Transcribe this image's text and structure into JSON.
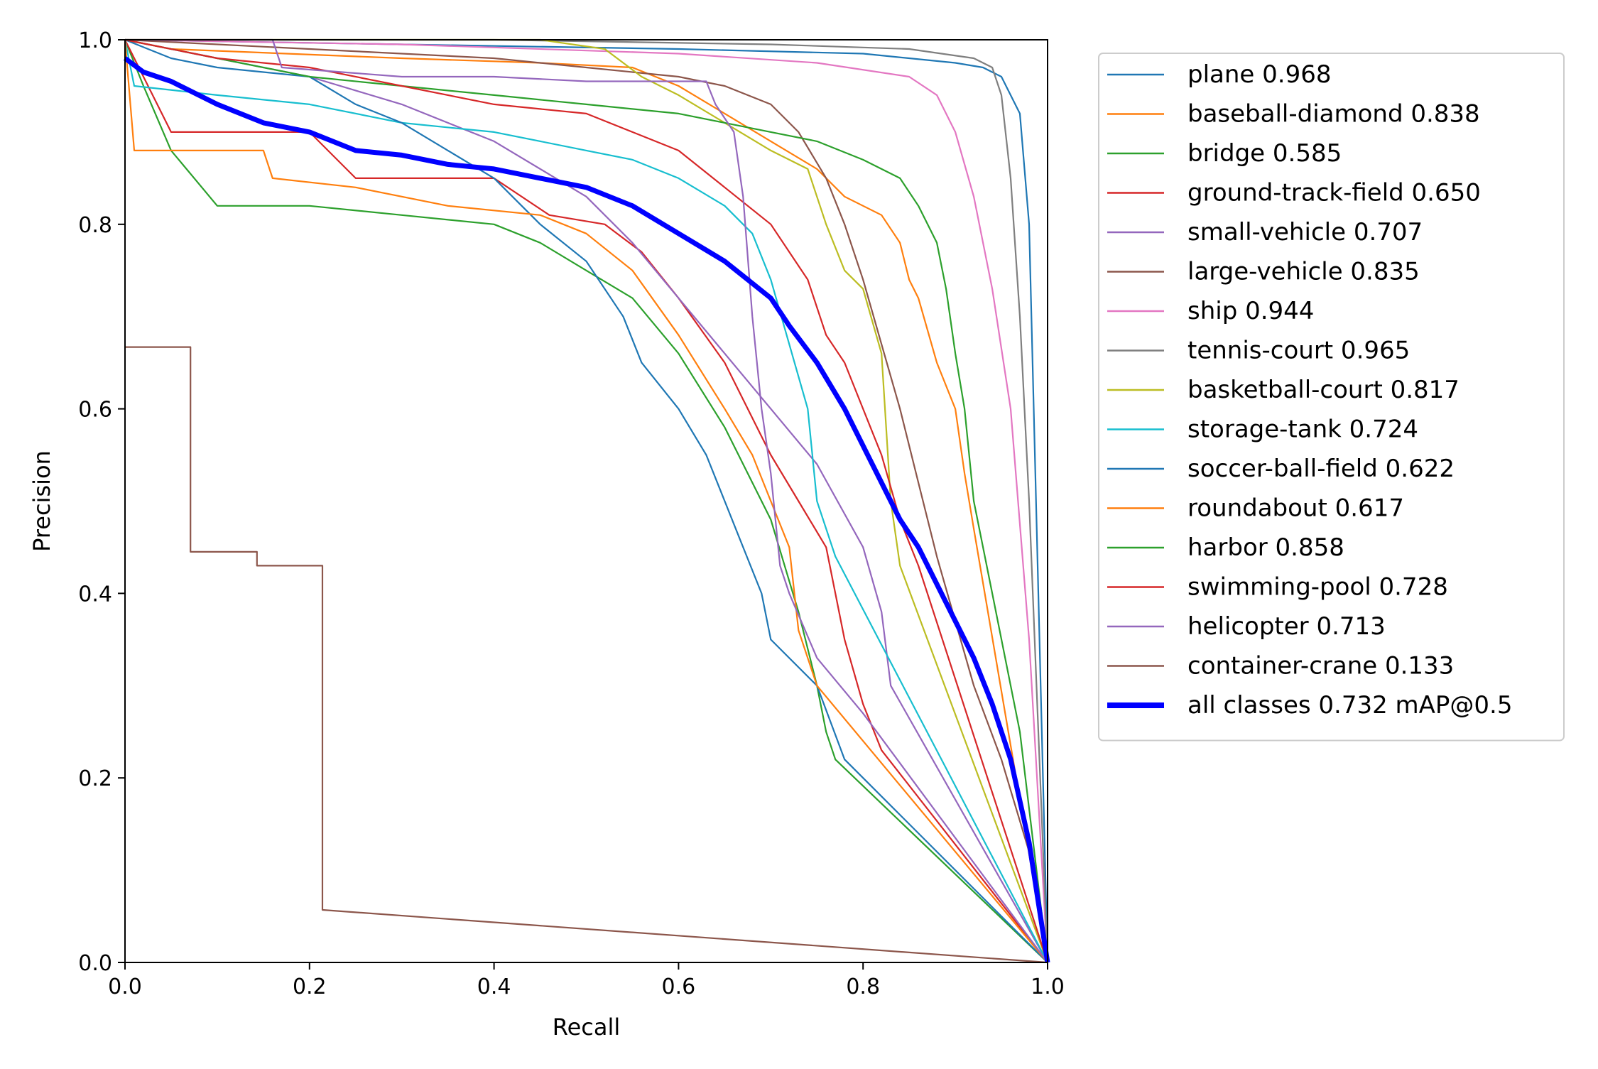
{
  "chart_data": {
    "type": "line",
    "title": "",
    "xlabel": "Recall",
    "ylabel": "Precision",
    "xlim": [
      0,
      1
    ],
    "ylim": [
      0,
      1
    ],
    "xticks": [
      "0.0",
      "0.2",
      "0.4",
      "0.6",
      "0.8",
      "1.0"
    ],
    "yticks": [
      "0.0",
      "0.2",
      "0.4",
      "0.6",
      "0.8",
      "1.0"
    ],
    "grid": false,
    "legend_position": "outside-right",
    "series": [
      {
        "name": "plane 0.968",
        "color": "#1f77b4",
        "points": [
          [
            0,
            1
          ],
          [
            0.3,
            0.995
          ],
          [
            0.6,
            0.99
          ],
          [
            0.8,
            0.985
          ],
          [
            0.9,
            0.975
          ],
          [
            0.93,
            0.97
          ],
          [
            0.95,
            0.96
          ],
          [
            0.97,
            0.92
          ],
          [
            0.98,
            0.8
          ],
          [
            0.99,
            0.4
          ],
          [
            1,
            0
          ]
        ]
      },
      {
        "name": "baseball-diamond 0.838",
        "color": "#ff7f0e",
        "points": [
          [
            0,
            1
          ],
          [
            0.05,
            0.99
          ],
          [
            0.3,
            0.98
          ],
          [
            0.45,
            0.975
          ],
          [
            0.55,
            0.97
          ],
          [
            0.6,
            0.95
          ],
          [
            0.65,
            0.92
          ],
          [
            0.7,
            0.89
          ],
          [
            0.75,
            0.86
          ],
          [
            0.78,
            0.83
          ],
          [
            0.8,
            0.82
          ],
          [
            0.82,
            0.81
          ],
          [
            0.84,
            0.78
          ],
          [
            0.85,
            0.74
          ],
          [
            0.86,
            0.72
          ],
          [
            0.88,
            0.65
          ],
          [
            0.9,
            0.6
          ],
          [
            0.91,
            0.53
          ],
          [
            0.92,
            0.47
          ],
          [
            1,
            0
          ]
        ]
      },
      {
        "name": "bridge 0.585",
        "color": "#2ca02c",
        "points": [
          [
            0,
            1
          ],
          [
            0.02,
            0.95
          ],
          [
            0.05,
            0.88
          ],
          [
            0.1,
            0.82
          ],
          [
            0.2,
            0.82
          ],
          [
            0.3,
            0.81
          ],
          [
            0.4,
            0.8
          ],
          [
            0.45,
            0.78
          ],
          [
            0.5,
            0.75
          ],
          [
            0.55,
            0.72
          ],
          [
            0.6,
            0.66
          ],
          [
            0.65,
            0.58
          ],
          [
            0.7,
            0.48
          ],
          [
            0.73,
            0.38
          ],
          [
            0.75,
            0.3
          ],
          [
            0.76,
            0.25
          ],
          [
            0.77,
            0.22
          ],
          [
            1,
            0
          ]
        ]
      },
      {
        "name": "ground-track-field 0.650",
        "color": "#d62728",
        "points": [
          [
            0,
            1
          ],
          [
            0.05,
            0.9
          ],
          [
            0.2,
            0.9
          ],
          [
            0.25,
            0.85
          ],
          [
            0.4,
            0.85
          ],
          [
            0.46,
            0.81
          ],
          [
            0.52,
            0.8
          ],
          [
            0.56,
            0.77
          ],
          [
            0.6,
            0.72
          ],
          [
            0.65,
            0.65
          ],
          [
            0.7,
            0.55
          ],
          [
            0.73,
            0.5
          ],
          [
            0.76,
            0.45
          ],
          [
            0.78,
            0.35
          ],
          [
            0.8,
            0.28
          ],
          [
            0.82,
            0.23
          ],
          [
            1,
            0
          ]
        ]
      },
      {
        "name": "small-vehicle 0.707",
        "color": "#9467bd",
        "points": [
          [
            0,
            1
          ],
          [
            0.1,
            0.98
          ],
          [
            0.2,
            0.96
          ],
          [
            0.3,
            0.93
          ],
          [
            0.4,
            0.89
          ],
          [
            0.5,
            0.83
          ],
          [
            0.55,
            0.78
          ],
          [
            0.6,
            0.72
          ],
          [
            0.65,
            0.66
          ],
          [
            0.7,
            0.6
          ],
          [
            0.75,
            0.54
          ],
          [
            0.8,
            0.45
          ],
          [
            0.82,
            0.38
          ],
          [
            0.83,
            0.3
          ],
          [
            1,
            0
          ]
        ]
      },
      {
        "name": "large-vehicle 0.835",
        "color": "#8c564b",
        "points": [
          [
            0,
            1
          ],
          [
            0.2,
            0.99
          ],
          [
            0.4,
            0.98
          ],
          [
            0.5,
            0.97
          ],
          [
            0.6,
            0.96
          ],
          [
            0.65,
            0.95
          ],
          [
            0.7,
            0.93
          ],
          [
            0.73,
            0.9
          ],
          [
            0.76,
            0.85
          ],
          [
            0.78,
            0.8
          ],
          [
            0.8,
            0.74
          ],
          [
            0.82,
            0.67
          ],
          [
            0.84,
            0.6
          ],
          [
            0.86,
            0.52
          ],
          [
            0.88,
            0.44
          ],
          [
            0.9,
            0.37
          ],
          [
            0.92,
            0.3
          ],
          [
            0.95,
            0.22
          ],
          [
            0.98,
            0.12
          ],
          [
            1,
            0
          ]
        ]
      },
      {
        "name": "ship 0.944",
        "color": "#e377c2",
        "points": [
          [
            0,
            1
          ],
          [
            0.3,
            0.995
          ],
          [
            0.6,
            0.985
          ],
          [
            0.75,
            0.975
          ],
          [
            0.85,
            0.96
          ],
          [
            0.88,
            0.94
          ],
          [
            0.9,
            0.9
          ],
          [
            0.92,
            0.83
          ],
          [
            0.94,
            0.73
          ],
          [
            0.96,
            0.6
          ],
          [
            0.98,
            0.35
          ],
          [
            1,
            0
          ]
        ]
      },
      {
        "name": "tennis-court 0.965",
        "color": "#7f7f7f",
        "points": [
          [
            0,
            1
          ],
          [
            0.4,
            1
          ],
          [
            0.7,
            0.995
          ],
          [
            0.85,
            0.99
          ],
          [
            0.92,
            0.98
          ],
          [
            0.94,
            0.97
          ],
          [
            0.95,
            0.94
          ],
          [
            0.96,
            0.85
          ],
          [
            0.97,
            0.7
          ],
          [
            0.98,
            0.5
          ],
          [
            0.99,
            0.25
          ],
          [
            1,
            0
          ]
        ]
      },
      {
        "name": "basketball-court 0.817",
        "color": "#bcbd22",
        "points": [
          [
            0,
            1
          ],
          [
            0.45,
            1
          ],
          [
            0.52,
            0.99
          ],
          [
            0.56,
            0.96
          ],
          [
            0.6,
            0.94
          ],
          [
            0.65,
            0.91
          ],
          [
            0.7,
            0.88
          ],
          [
            0.74,
            0.86
          ],
          [
            0.76,
            0.8
          ],
          [
            0.78,
            0.75
          ],
          [
            0.8,
            0.73
          ],
          [
            0.82,
            0.66
          ],
          [
            0.83,
            0.5
          ],
          [
            0.84,
            0.43
          ],
          [
            1,
            0
          ]
        ]
      },
      {
        "name": "storage-tank 0.724",
        "color": "#17becf",
        "points": [
          [
            0,
            1
          ],
          [
            0.01,
            0.95
          ],
          [
            0.1,
            0.94
          ],
          [
            0.2,
            0.93
          ],
          [
            0.3,
            0.91
          ],
          [
            0.4,
            0.9
          ],
          [
            0.5,
            0.88
          ],
          [
            0.55,
            0.87
          ],
          [
            0.6,
            0.85
          ],
          [
            0.65,
            0.82
          ],
          [
            0.68,
            0.79
          ],
          [
            0.7,
            0.74
          ],
          [
            0.72,
            0.67
          ],
          [
            0.74,
            0.6
          ],
          [
            0.75,
            0.5
          ],
          [
            0.77,
            0.44
          ],
          [
            1,
            0
          ]
        ]
      },
      {
        "name": "soccer-ball-field 0.622",
        "color": "#1f77b4",
        "points": [
          [
            0,
            1
          ],
          [
            0.05,
            0.98
          ],
          [
            0.1,
            0.97
          ],
          [
            0.2,
            0.96
          ],
          [
            0.25,
            0.93
          ],
          [
            0.3,
            0.91
          ],
          [
            0.35,
            0.88
          ],
          [
            0.4,
            0.85
          ],
          [
            0.45,
            0.8
          ],
          [
            0.5,
            0.76
          ],
          [
            0.54,
            0.7
          ],
          [
            0.56,
            0.65
          ],
          [
            0.6,
            0.6
          ],
          [
            0.63,
            0.55
          ],
          [
            0.65,
            0.5
          ],
          [
            0.67,
            0.45
          ],
          [
            0.69,
            0.4
          ],
          [
            0.7,
            0.35
          ],
          [
            0.75,
            0.3
          ],
          [
            0.78,
            0.22
          ],
          [
            1,
            0
          ]
        ]
      },
      {
        "name": "roundabout 0.617",
        "color": "#ff7f0e",
        "points": [
          [
            0,
            1
          ],
          [
            0.01,
            0.88
          ],
          [
            0.15,
            0.88
          ],
          [
            0.16,
            0.85
          ],
          [
            0.25,
            0.84
          ],
          [
            0.35,
            0.82
          ],
          [
            0.45,
            0.81
          ],
          [
            0.5,
            0.79
          ],
          [
            0.55,
            0.75
          ],
          [
            0.6,
            0.68
          ],
          [
            0.65,
            0.6
          ],
          [
            0.68,
            0.55
          ],
          [
            0.7,
            0.5
          ],
          [
            0.72,
            0.45
          ],
          [
            0.73,
            0.36
          ],
          [
            0.75,
            0.3
          ],
          [
            0.8,
            0.24
          ],
          [
            1,
            0
          ]
        ]
      },
      {
        "name": "harbor 0.858",
        "color": "#2ca02c",
        "points": [
          [
            0,
            1
          ],
          [
            0.1,
            0.98
          ],
          [
            0.2,
            0.96
          ],
          [
            0.3,
            0.95
          ],
          [
            0.4,
            0.94
          ],
          [
            0.5,
            0.93
          ],
          [
            0.6,
            0.92
          ],
          [
            0.65,
            0.91
          ],
          [
            0.7,
            0.9
          ],
          [
            0.75,
            0.89
          ],
          [
            0.8,
            0.87
          ],
          [
            0.84,
            0.85
          ],
          [
            0.86,
            0.82
          ],
          [
            0.88,
            0.78
          ],
          [
            0.89,
            0.73
          ],
          [
            0.9,
            0.66
          ],
          [
            0.91,
            0.6
          ],
          [
            0.92,
            0.5
          ],
          [
            0.94,
            0.4
          ],
          [
            0.97,
            0.25
          ],
          [
            1,
            0
          ]
        ]
      },
      {
        "name": "swimming-pool 0.728",
        "color": "#d62728",
        "points": [
          [
            0,
            1
          ],
          [
            0.1,
            0.98
          ],
          [
            0.2,
            0.97
          ],
          [
            0.3,
            0.95
          ],
          [
            0.4,
            0.93
          ],
          [
            0.5,
            0.92
          ],
          [
            0.55,
            0.9
          ],
          [
            0.6,
            0.88
          ],
          [
            0.65,
            0.84
          ],
          [
            0.7,
            0.8
          ],
          [
            0.74,
            0.74
          ],
          [
            0.76,
            0.68
          ],
          [
            0.78,
            0.65
          ],
          [
            0.8,
            0.6
          ],
          [
            0.82,
            0.55
          ],
          [
            0.84,
            0.48
          ],
          [
            0.86,
            0.43
          ],
          [
            1,
            0
          ]
        ]
      },
      {
        "name": "helicopter 0.713",
        "color": "#9467bd",
        "points": [
          [
            0,
            1
          ],
          [
            0.16,
            1
          ],
          [
            0.17,
            0.97
          ],
          [
            0.3,
            0.96
          ],
          [
            0.4,
            0.96
          ],
          [
            0.5,
            0.955
          ],
          [
            0.63,
            0.955
          ],
          [
            0.64,
            0.93
          ],
          [
            0.66,
            0.9
          ],
          [
            0.67,
            0.83
          ],
          [
            0.68,
            0.7
          ],
          [
            0.69,
            0.6
          ],
          [
            0.7,
            0.53
          ],
          [
            0.71,
            0.43
          ],
          [
            0.72,
            0.4
          ],
          [
            0.75,
            0.33
          ],
          [
            0.8,
            0.27
          ],
          [
            1,
            0
          ]
        ]
      },
      {
        "name": "container-crane 0.133",
        "color": "#8c564b",
        "points": [
          [
            0,
            0.667
          ],
          [
            0.071,
            0.667
          ],
          [
            0.071,
            0.445
          ],
          [
            0.143,
            0.445
          ],
          [
            0.143,
            0.43
          ],
          [
            0.214,
            0.43
          ],
          [
            0.214,
            0.057
          ],
          [
            1,
            0
          ]
        ]
      },
      {
        "name": "all classes 0.732 mAP@0.5",
        "color": "#0000ff",
        "points": [
          [
            0,
            0.98
          ],
          [
            0.02,
            0.965
          ],
          [
            0.05,
            0.955
          ],
          [
            0.1,
            0.93
          ],
          [
            0.15,
            0.91
          ],
          [
            0.2,
            0.9
          ],
          [
            0.25,
            0.88
          ],
          [
            0.3,
            0.875
          ],
          [
            0.35,
            0.865
          ],
          [
            0.4,
            0.86
          ],
          [
            0.45,
            0.85
          ],
          [
            0.5,
            0.84
          ],
          [
            0.55,
            0.82
          ],
          [
            0.6,
            0.79
          ],
          [
            0.65,
            0.76
          ],
          [
            0.7,
            0.72
          ],
          [
            0.72,
            0.69
          ],
          [
            0.75,
            0.65
          ],
          [
            0.78,
            0.6
          ],
          [
            0.8,
            0.56
          ],
          [
            0.82,
            0.52
          ],
          [
            0.84,
            0.48
          ],
          [
            0.86,
            0.45
          ],
          [
            0.88,
            0.41
          ],
          [
            0.9,
            0.37
          ],
          [
            0.92,
            0.33
          ],
          [
            0.94,
            0.28
          ],
          [
            0.96,
            0.22
          ],
          [
            0.98,
            0.13
          ],
          [
            1,
            0
          ]
        ]
      }
    ]
  }
}
